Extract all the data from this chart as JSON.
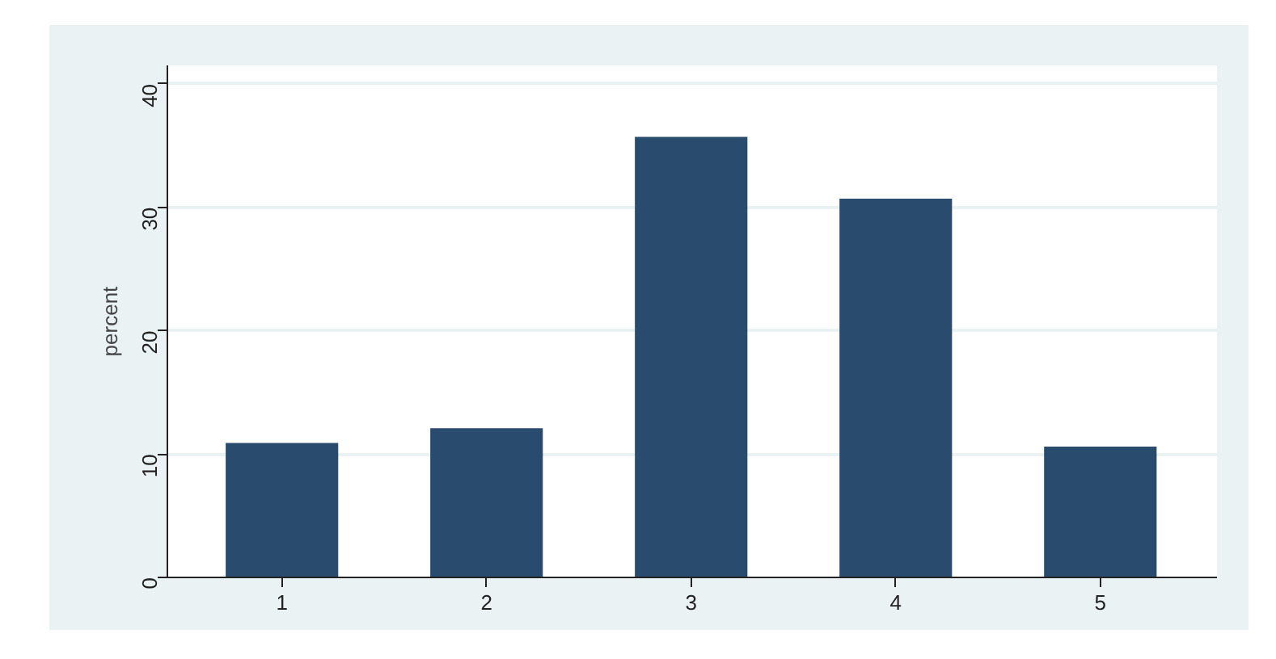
{
  "chart_data": {
    "type": "bar",
    "ylabel": "percent",
    "categories": [
      "1",
      "2",
      "3",
      "4",
      "5"
    ],
    "values": [
      10.9,
      12.1,
      35.7,
      30.7,
      10.6
    ],
    "color": "#284b6e",
    "ylim": [
      0,
      41.5
    ],
    "yticks": [
      0,
      10,
      20,
      30,
      40
    ],
    "grid": "y"
  }
}
